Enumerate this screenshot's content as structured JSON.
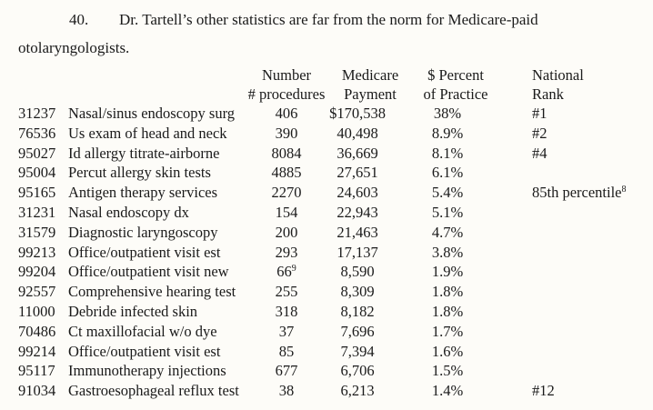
{
  "paragraph": {
    "number": "40.",
    "line1": "Dr. Tartell’s other statistics are far from the norm for Medicare-paid",
    "line2": "otolaryngologists."
  },
  "headers": {
    "number": [
      "Number",
      "# procedures"
    ],
    "payment": [
      "Medicare",
      "Payment"
    ],
    "percent": [
      "$ Percent",
      "of Practice"
    ],
    "rank": [
      "National",
      "Rank"
    ]
  },
  "rows": [
    {
      "code": "31237",
      "desc": "Nasal/sinus endoscopy surg",
      "num": "406",
      "num_note": "",
      "pay": "$170,538",
      "pct": "38%",
      "rank": "#1",
      "rank_note": ""
    },
    {
      "code": "76536",
      "desc": "Us exam of head and neck",
      "num": "390",
      "num_note": "",
      "pay": "40,498",
      "pct": "8.9%",
      "rank": "#2",
      "rank_note": ""
    },
    {
      "code": "95027",
      "desc": "Id allergy titrate-airborne",
      "num": "8084",
      "num_note": "",
      "pay": "36,669",
      "pct": "8.1%",
      "rank": "#4",
      "rank_note": ""
    },
    {
      "code": "95004",
      "desc": "Percut allergy skin tests",
      "num": "4885",
      "num_note": "",
      "pay": "27,651",
      "pct": "6.1%",
      "rank": "",
      "rank_note": ""
    },
    {
      "code": "95165",
      "desc": "Antigen therapy services",
      "num": "2270",
      "num_note": "",
      "pay": "24,603",
      "pct": "5.4%",
      "rank": "85th percentile",
      "rank_note": "8"
    },
    {
      "code": "31231",
      "desc": "Nasal endoscopy dx",
      "num": "154",
      "num_note": "",
      "pay": "22,943",
      "pct": "5.1%",
      "rank": "",
      "rank_note": ""
    },
    {
      "code": "31579",
      "desc": "Diagnostic laryngoscopy",
      "num": "200",
      "num_note": "",
      "pay": "21,463",
      "pct": "4.7%",
      "rank": "",
      "rank_note": ""
    },
    {
      "code": "99213",
      "desc": "Office/outpatient visit est",
      "num": "293",
      "num_note": "",
      "pay": "17,137",
      "pct": "3.8%",
      "rank": "",
      "rank_note": ""
    },
    {
      "code": "99204",
      "desc": "Office/outpatient visit new",
      "num": "66",
      "num_note": "9",
      "pay": "8,590",
      "pct": "1.9%",
      "rank": "",
      "rank_note": ""
    },
    {
      "code": "92557",
      "desc": "Comprehensive hearing test",
      "num": "255",
      "num_note": "",
      "pay": "8,309",
      "pct": "1.8%",
      "rank": "",
      "rank_note": ""
    },
    {
      "code": "11000",
      "desc": "Debride infected skin",
      "num": "318",
      "num_note": "",
      "pay": "8,182",
      "pct": "1.8%",
      "rank": "",
      "rank_note": ""
    },
    {
      "code": "70486",
      "desc": "Ct maxillofacial w/o dye",
      "num": "37",
      "num_note": "",
      "pay": "7,696",
      "pct": "1.7%",
      "rank": "",
      "rank_note": ""
    },
    {
      "code": "99214",
      "desc": "Office/outpatient visit est",
      "num": "85",
      "num_note": "",
      "pay": "7,394",
      "pct": "1.6%",
      "rank": "",
      "rank_note": ""
    },
    {
      "code": "95117",
      "desc": "Immunotherapy injections",
      "num": "677",
      "num_note": "",
      "pay": "6,706",
      "pct": "1.5%",
      "rank": "",
      "rank_note": ""
    },
    {
      "code": "91034",
      "desc": "Gastroesophageal reflux test",
      "num": "38",
      "num_note": "",
      "pay": "6,213",
      "pct": "1.4%",
      "rank": "#12",
      "rank_note": ""
    }
  ]
}
